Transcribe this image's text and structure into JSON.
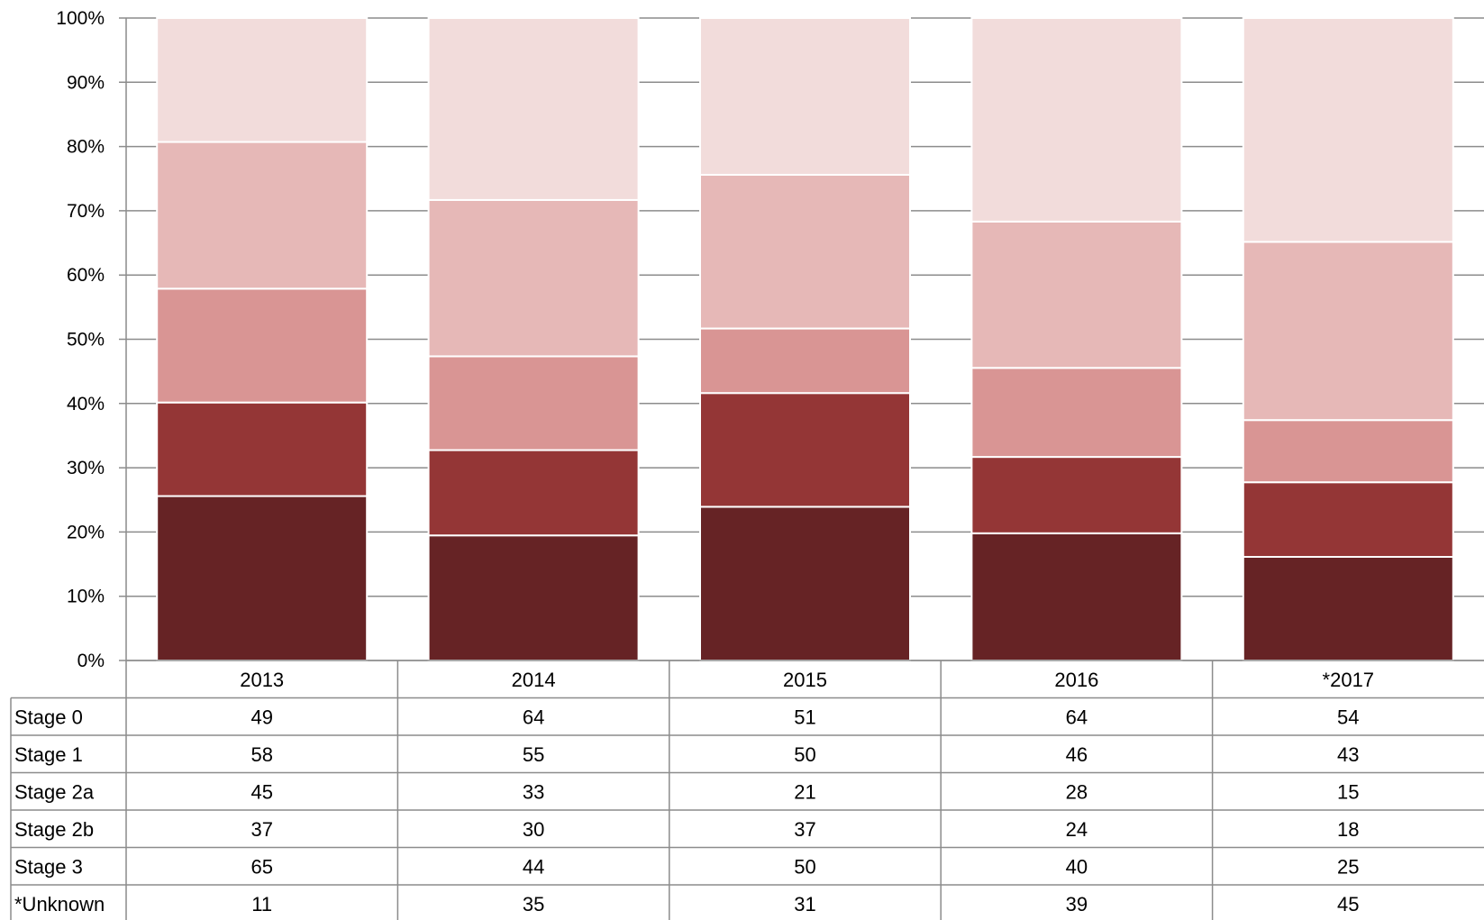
{
  "chart_data": {
    "type": "bar",
    "stacked": "percent",
    "title": "",
    "xlabel": "",
    "ylabel": "",
    "ylim": [
      0,
      100
    ],
    "y_ticks": [
      "0%",
      "10%",
      "20%",
      "30%",
      "40%",
      "50%",
      "60%",
      "70%",
      "80%",
      "90%",
      "100%"
    ],
    "grid": "horizontal",
    "legend": "data table below the chart",
    "categories": [
      "2013",
      "2014",
      "2015",
      "2016",
      "*2017"
    ],
    "series": [
      {
        "name": "Stage 3",
        "values": [
          65,
          44,
          50,
          40,
          25
        ],
        "color": "#662325"
      },
      {
        "name": "Stage 2b",
        "values": [
          37,
          30,
          37,
          24,
          18
        ],
        "color": "#943636"
      },
      {
        "name": "Stage 2a",
        "values": [
          45,
          33,
          21,
          28,
          15
        ],
        "color": "#d99594"
      },
      {
        "name": "Stage 1",
        "values": [
          58,
          55,
          50,
          46,
          43
        ],
        "color": "#e6b8b7"
      },
      {
        "name": "Stage 0",
        "values": [
          49,
          64,
          51,
          64,
          54
        ],
        "color": "#f2dcdb"
      }
    ],
    "table": {
      "rows": [
        {
          "label": "Stage 0",
          "values": [
            "49",
            "64",
            "51",
            "64",
            "54"
          ]
        },
        {
          "label": "Stage 1",
          "values": [
            "58",
            "55",
            "50",
            "46",
            "43"
          ]
        },
        {
          "label": "Stage 2a",
          "values": [
            "45",
            "33",
            "21",
            "28",
            "15"
          ]
        },
        {
          "label": "Stage 2b",
          "values": [
            "37",
            "30",
            "37",
            "24",
            "18"
          ]
        },
        {
          "label": "Stage 3",
          "values": [
            "65",
            "44",
            "50",
            "40",
            "25"
          ]
        },
        {
          "label": "*Unknown",
          "values": [
            "11",
            "35",
            "31",
            "39",
            "45"
          ]
        }
      ]
    }
  }
}
